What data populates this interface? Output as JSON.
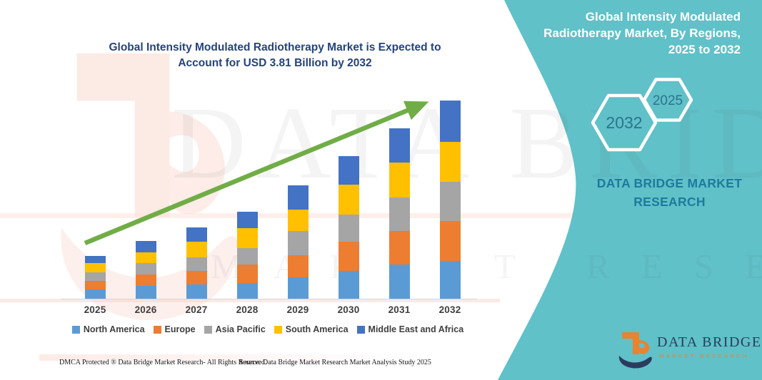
{
  "header": {
    "chart_title": [
      "Global Intensity Modulated Radiotherapy Market is Expected to",
      "Account for USD 3.81 Billion by 2032"
    ]
  },
  "chart_data": {
    "type": "bar",
    "stacked": true,
    "title": "Global Intensity Modulated Radiotherapy Market is Expected to Account for USD 3.81 Billion by 2032",
    "unit": "USD Billion",
    "categories": [
      "2025",
      "2026",
      "2027",
      "2028",
      "2029",
      "2030",
      "2031",
      "2032"
    ],
    "series": [
      {
        "name": "North America",
        "color": "#5B9BD5",
        "values": [
          0.18,
          0.25,
          0.27,
          0.3,
          0.41,
          0.54,
          0.66,
          0.72
        ]
      },
      {
        "name": "Europe",
        "color": "#ED7D31",
        "values": [
          0.16,
          0.22,
          0.26,
          0.36,
          0.43,
          0.55,
          0.64,
          0.78
        ]
      },
      {
        "name": "Asia Pacific",
        "color": "#A5A5A5",
        "values": [
          0.17,
          0.21,
          0.27,
          0.31,
          0.46,
          0.52,
          0.64,
          0.75
        ]
      },
      {
        "name": "South America",
        "color": "#FFC000",
        "values": [
          0.17,
          0.21,
          0.3,
          0.38,
          0.41,
          0.58,
          0.67,
          0.76
        ]
      },
      {
        "name": "Middle East and Africa",
        "color": "#4472C4",
        "values": [
          0.14,
          0.22,
          0.27,
          0.32,
          0.47,
          0.55,
          0.67,
          0.8
        ]
      }
    ],
    "totals": [
      0.82,
      1.11,
      1.37,
      1.67,
      2.18,
      2.74,
      3.28,
      3.81
    ],
    "ylim": [
      0,
      4
    ],
    "grid": false,
    "legend_position": "bottom",
    "trend_arrow": true
  },
  "right_panel": {
    "title_lines": [
      "Global Intensity Modulated",
      "Radiotherapy Market, By Regions,",
      "2025 to 2032"
    ],
    "hexagons": [
      {
        "label": "2032"
      },
      {
        "label": "2025"
      }
    ],
    "brand_lines": [
      "DATA BRIDGE MARKET",
      "RESEARCH"
    ]
  },
  "logo": {
    "wordmark": "DATA BRIDGE",
    "subtitle": "MARKET RESEARCH"
  },
  "footer": {
    "dmca": "DMCA Protected ® Data Bridge Market Research-  All Rights Reserved.",
    "source": "Source: Data Bridge Market Research  Market Analysis Study 2025"
  },
  "watermark": {
    "row1": "DATA BRIDGE",
    "row2": "MARKET RESEARCH"
  },
  "theme": {
    "accent_teal": "#60C1C8",
    "title_navy": "#26437C",
    "panel_text": "#FFFFFF",
    "hex_label": "#2C7390",
    "brand_blue": "#1E7A9E",
    "axis_label_gray": "#3F3F3F",
    "baseline_gray": "#D6D6D6",
    "arrow_green": "#70AD47",
    "logo_navy": "#2B3C5E",
    "logo_orange": "#E8832F"
  }
}
